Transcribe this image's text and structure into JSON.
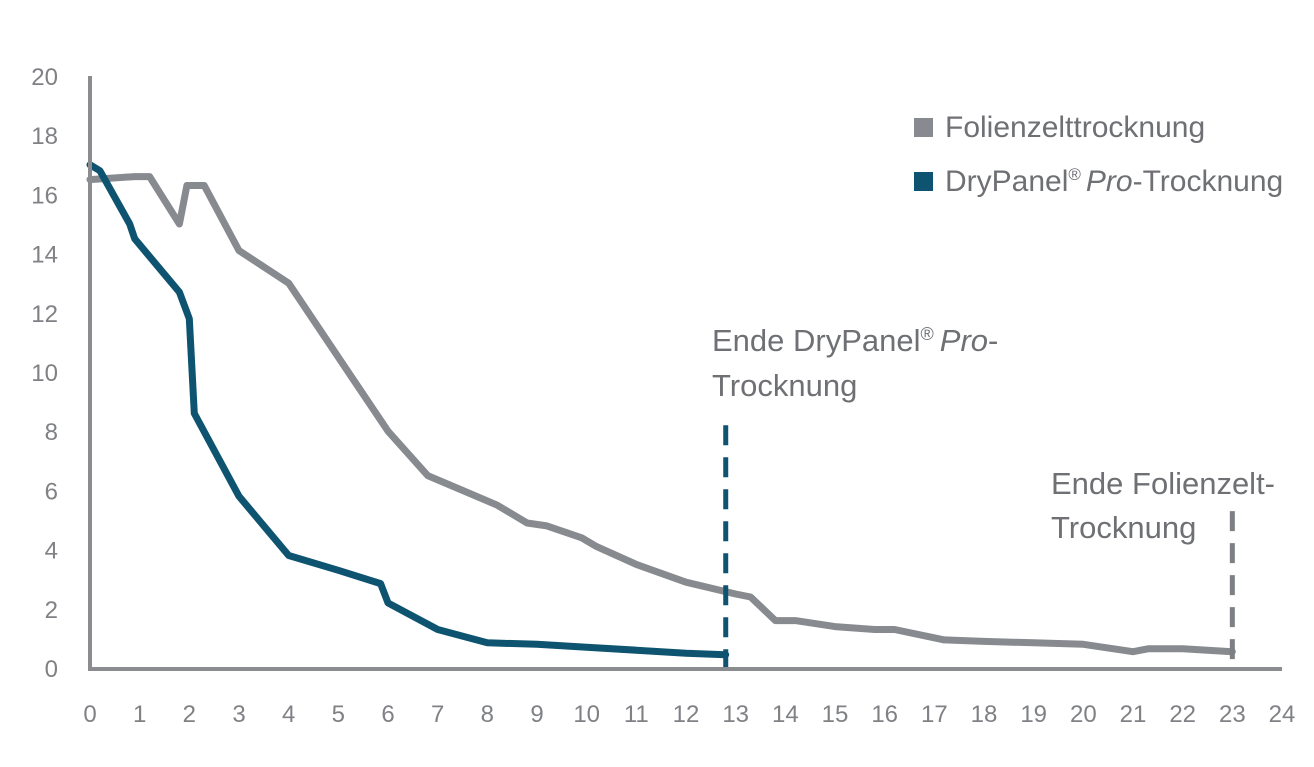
{
  "chart_data": {
    "type": "line",
    "title": "",
    "xlabel": "",
    "ylabel": "",
    "xlim": [
      0,
      24
    ],
    "ylim": [
      0,
      20
    ],
    "x_ticks": [
      0,
      1,
      2,
      3,
      4,
      5,
      6,
      7,
      8,
      9,
      10,
      11,
      12,
      13,
      14,
      15,
      16,
      17,
      18,
      19,
      20,
      21,
      22,
      23,
      24
    ],
    "y_ticks": [
      0,
      2,
      4,
      6,
      8,
      10,
      12,
      14,
      16,
      18,
      20
    ],
    "grid": false,
    "legend_position": "top-right",
    "series": [
      {
        "name": "Folienzelttrocknung",
        "color": "#878a8f",
        "points": [
          [
            0,
            16.5
          ],
          [
            0.9,
            16.6
          ],
          [
            1.2,
            16.6
          ],
          [
            1.8,
            15.0
          ],
          [
            1.95,
            16.3
          ],
          [
            2.3,
            16.3
          ],
          [
            3,
            14.1
          ],
          [
            4,
            13.0
          ],
          [
            5,
            10.5
          ],
          [
            6,
            8.0
          ],
          [
            6.8,
            6.5
          ],
          [
            7.5,
            6.0
          ],
          [
            8.2,
            5.5
          ],
          [
            8.8,
            4.9
          ],
          [
            9.2,
            4.8
          ],
          [
            9.9,
            4.4
          ],
          [
            10.2,
            4.1
          ],
          [
            11,
            3.5
          ],
          [
            12,
            2.9
          ],
          [
            13,
            2.5
          ],
          [
            13.3,
            2.4
          ],
          [
            13.8,
            1.6
          ],
          [
            14.2,
            1.6
          ],
          [
            15,
            1.4
          ],
          [
            15.8,
            1.3
          ],
          [
            16.2,
            1.3
          ],
          [
            17.2,
            0.95
          ],
          [
            18,
            0.9
          ],
          [
            19,
            0.85
          ],
          [
            20,
            0.8
          ],
          [
            21,
            0.55
          ],
          [
            21.3,
            0.65
          ],
          [
            22,
            0.65
          ],
          [
            23,
            0.55
          ]
        ]
      },
      {
        "name": "DryPanel® Pro-Trocknung",
        "color": "#0e5470",
        "points": [
          [
            0,
            17.0
          ],
          [
            0.2,
            16.8
          ],
          [
            0.8,
            15.0
          ],
          [
            0.9,
            14.5
          ],
          [
            1.8,
            12.7
          ],
          [
            2,
            11.8
          ],
          [
            2.1,
            8.6
          ],
          [
            3,
            5.8
          ],
          [
            4,
            3.8
          ],
          [
            5,
            3.3
          ],
          [
            5.85,
            2.85
          ],
          [
            6,
            2.2
          ],
          [
            7,
            1.3
          ],
          [
            8,
            0.85
          ],
          [
            9,
            0.8
          ],
          [
            10,
            0.7
          ],
          [
            11,
            0.6
          ],
          [
            12,
            0.5
          ],
          [
            12.8,
            0.45
          ]
        ]
      }
    ],
    "reference_lines": [
      {
        "x": 12.8,
        "color": "#0e5470",
        "y_from": 0,
        "y_to": 8.2,
        "label_lines": [
          "Ende DryPanel® Pro-",
          "Trocknung"
        ]
      },
      {
        "x": 23,
        "color": "#7c7f84",
        "y_from": 0,
        "y_to": 5.3,
        "label_lines": [
          "Ende Folienzelt-",
          "Trocknung"
        ]
      }
    ],
    "legend": [
      {
        "label": "Folienzelttrocknung",
        "color": "#878a8f"
      },
      {
        "label_main": "DryPanel",
        "label_sup": "®",
        "label_italic": "Pro",
        "label_suffix": "-Trocknung",
        "color": "#0e5470"
      }
    ],
    "annotations": [
      {
        "line1_main": "Ende DryPanel",
        "line1_sup": "®",
        "line1_italic": "Pro",
        "line1_suffix": "-",
        "line2": "Trocknung"
      },
      {
        "line1": "Ende Folienzelt-",
        "line2": "Trocknung"
      }
    ]
  }
}
